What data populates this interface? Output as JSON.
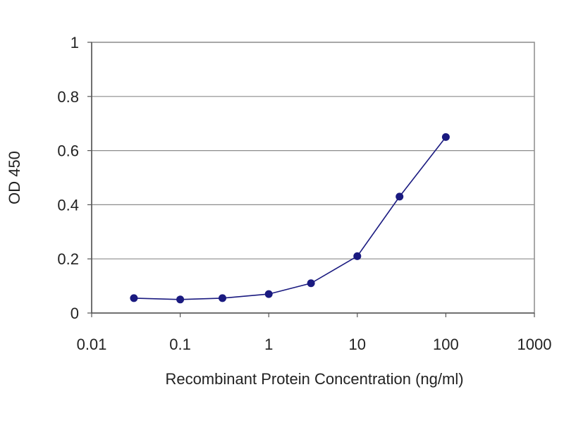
{
  "chart_data": {
    "type": "line",
    "title": "",
    "xlabel": "Recombinant Protein Concentration (ng/ml)",
    "ylabel": "OD 450",
    "x_scale": "log",
    "xlim": [
      0.01,
      1000
    ],
    "ylim": [
      0,
      1
    ],
    "x_ticks": [
      "0.01",
      "0.1",
      "1",
      "10",
      "100",
      "1000"
    ],
    "y_ticks": [
      "0",
      "0.2",
      "0.4",
      "0.6",
      "0.8",
      "1"
    ],
    "grid": "horizontal",
    "legend": "none",
    "series": [
      {
        "x": [
          0.03,
          0.1,
          0.3,
          1,
          3,
          10,
          30,
          100
        ],
        "y": [
          0.055,
          0.05,
          0.055,
          0.07,
          0.11,
          0.21,
          0.43,
          0.65
        ],
        "color": "#1a1a80"
      }
    ]
  }
}
